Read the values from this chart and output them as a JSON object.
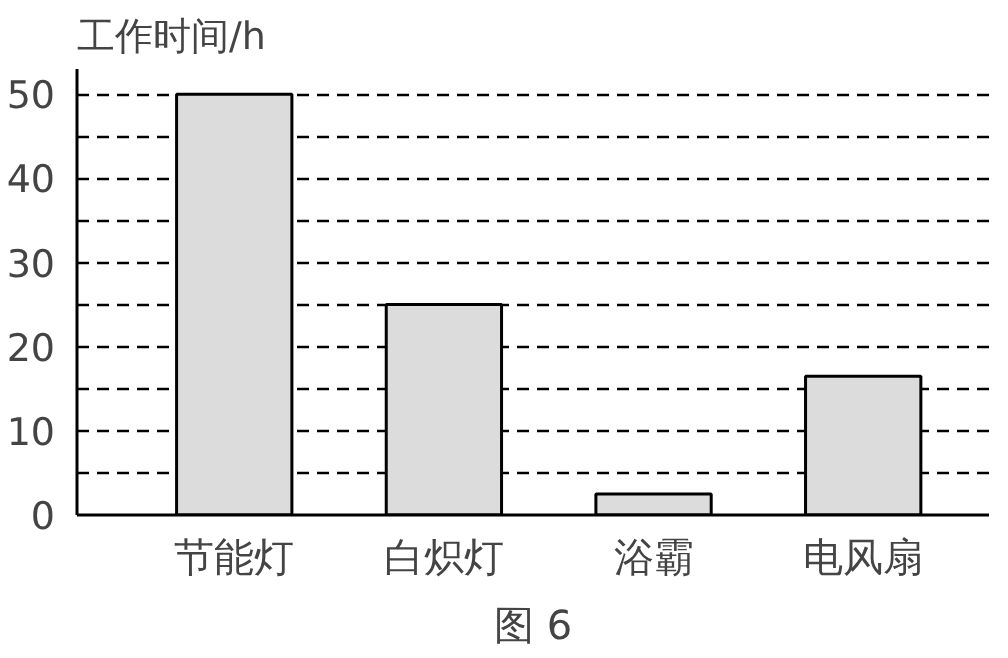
{
  "chart_data": {
    "type": "bar",
    "ylabel": "工作时间/h",
    "categories": [
      "节能灯",
      "白炽灯",
      "浴霸",
      "电风扇"
    ],
    "values": [
      50,
      25,
      2.5,
      16.5
    ],
    "color": "#dcdcdc",
    "ylim": [
      0,
      53
    ],
    "yticks": [
      0,
      {
        "value": 5,
        "label": null
      },
      10,
      {
        "value": 15,
        "label": null
      },
      20,
      {
        "value": 25,
        "label": null
      },
      30,
      {
        "value": 35,
        "label": null
      },
      40,
      {
        "value": 45,
        "label": null
      },
      50
    ],
    "grid": "y",
    "annotations": [
      "图 6"
    ]
  }
}
